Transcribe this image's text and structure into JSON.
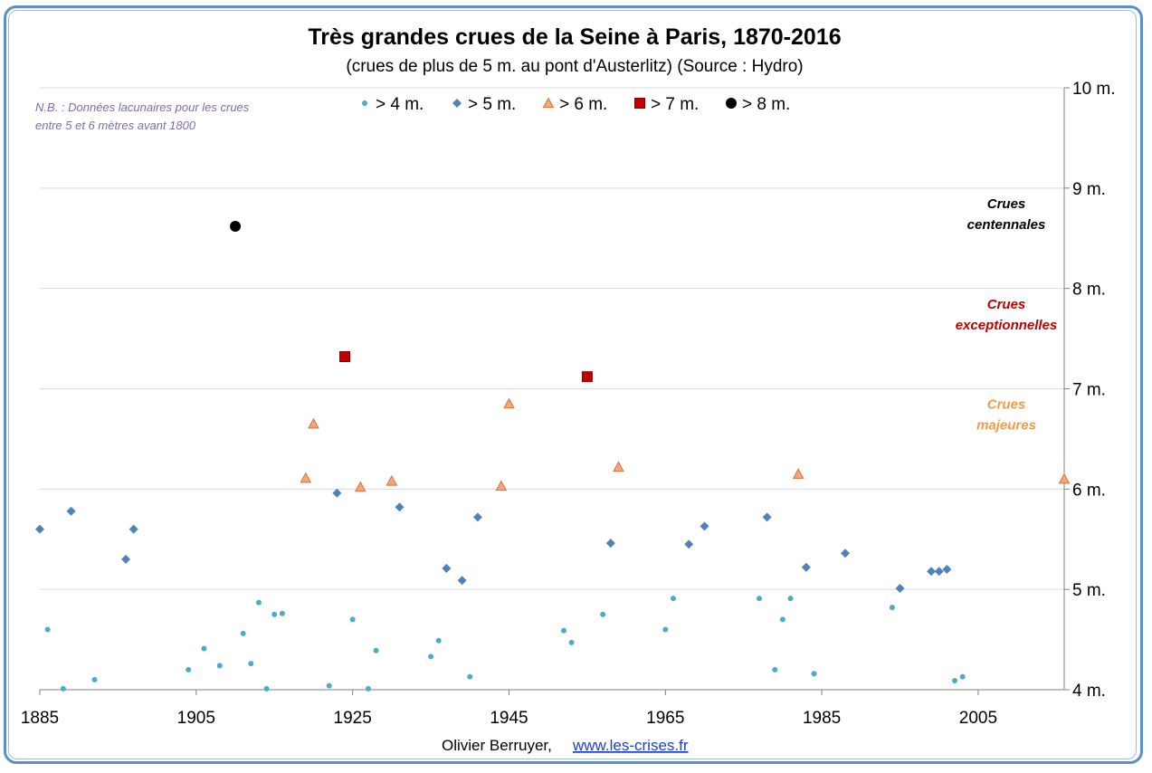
{
  "chart_data": {
    "type": "scatter",
    "title": "Très grandes crues de la Seine à Paris, 1870-2016",
    "subtitle": "(crues de plus de 5 m. au pont d'Austerlitz) (Source : Hydro)",
    "note_lines": [
      "N.B. : Données lacunaires pour les crues",
      "entre 5 et 6 mètres avant 1800"
    ],
    "xlim": [
      1885,
      2016
    ],
    "ylim": [
      4,
      10
    ],
    "x_ticks": [
      1885,
      1905,
      1925,
      1945,
      1965,
      1985,
      2005
    ],
    "y_ticks": [
      {
        "value": 4,
        "label": "4 m."
      },
      {
        "value": 5,
        "label": "5 m."
      },
      {
        "value": 6,
        "label": "6 m."
      },
      {
        "value": 7,
        "label": "7 m."
      },
      {
        "value": 8,
        "label": "8 m."
      },
      {
        "value": 9,
        "label": "9 m."
      },
      {
        "value": 10,
        "label": "10 m."
      }
    ],
    "grid": "horizontal",
    "legend_position": "top-center",
    "zones": [
      {
        "lines": [
          "Crues",
          "centennales"
        ],
        "y": 8.8,
        "color": "#000000"
      },
      {
        "lines": [
          "Crues",
          "exceptionnelles"
        ],
        "y": 7.8,
        "color": "#c00000"
      },
      {
        "lines": [
          "Crues",
          "majeures"
        ],
        "y": 6.8,
        "color": "#f59a44"
      }
    ],
    "series": [
      {
        "name": "> 4 m.",
        "marker": "circle-small",
        "color": "#4bacc6",
        "points": [
          [
            1886,
            4.6
          ],
          [
            1888,
            4.01
          ],
          [
            1892,
            4.1
          ],
          [
            1904,
            4.2
          ],
          [
            1906,
            4.41
          ],
          [
            1908,
            4.24
          ],
          [
            1911,
            4.56
          ],
          [
            1912,
            4.26
          ],
          [
            1913,
            4.87
          ],
          [
            1914,
            4.01
          ],
          [
            1915,
            4.75
          ],
          [
            1916,
            4.76
          ],
          [
            1922,
            4.04
          ],
          [
            1925,
            4.7
          ],
          [
            1927,
            4.01
          ],
          [
            1928,
            4.39
          ],
          [
            1935,
            4.33
          ],
          [
            1936,
            4.49
          ],
          [
            1940,
            4.13
          ],
          [
            1952,
            4.59
          ],
          [
            1953,
            4.47
          ],
          [
            1957,
            4.75
          ],
          [
            1965,
            4.6
          ],
          [
            1966,
            4.91
          ],
          [
            1977,
            4.91
          ],
          [
            1979,
            4.2
          ],
          [
            1980,
            4.7
          ],
          [
            1981,
            4.91
          ],
          [
            1984,
            4.16
          ],
          [
            1994,
            4.82
          ],
          [
            2002,
            4.09
          ],
          [
            2003,
            4.13
          ]
        ]
      },
      {
        "name": "> 5 m.",
        "marker": "diamond",
        "color": "#4f81bd",
        "points": [
          [
            1885,
            5.6
          ],
          [
            1889,
            5.78
          ],
          [
            1896,
            5.3
          ],
          [
            1897,
            5.6
          ],
          [
            1923,
            5.96
          ],
          [
            1931,
            5.82
          ],
          [
            1937,
            5.21
          ],
          [
            1939,
            5.09
          ],
          [
            1941,
            5.72
          ],
          [
            1958,
            5.46
          ],
          [
            1968,
            5.45
          ],
          [
            1970,
            5.63
          ],
          [
            1978,
            5.72
          ],
          [
            1983,
            5.22
          ],
          [
            1988,
            5.36
          ],
          [
            1995,
            5.01
          ],
          [
            1999,
            5.18
          ],
          [
            2000,
            5.18
          ],
          [
            2001,
            5.2
          ]
        ]
      },
      {
        "name": "> 6 m.",
        "marker": "triangle",
        "color": "#f4a67d",
        "points": [
          [
            1919,
            6.11
          ],
          [
            1920,
            6.65
          ],
          [
            1926,
            6.02
          ],
          [
            1930,
            6.08
          ],
          [
            1944,
            6.03
          ],
          [
            1945,
            6.85
          ],
          [
            1959,
            6.22
          ],
          [
            1982,
            6.15
          ],
          [
            2016,
            6.1
          ]
        ]
      },
      {
        "name": "> 7 m.",
        "marker": "square",
        "color": "#c00000",
        "points": [
          [
            1924,
            7.32
          ],
          [
            1955,
            7.12
          ]
        ]
      },
      {
        "name": "> 8 m.",
        "marker": "circle-large",
        "color": "#000000",
        "points": [
          [
            1910,
            8.62
          ]
        ]
      }
    ]
  },
  "credit": {
    "author": "Olivier Berruyer,",
    "link": "www.les-crises.fr"
  }
}
